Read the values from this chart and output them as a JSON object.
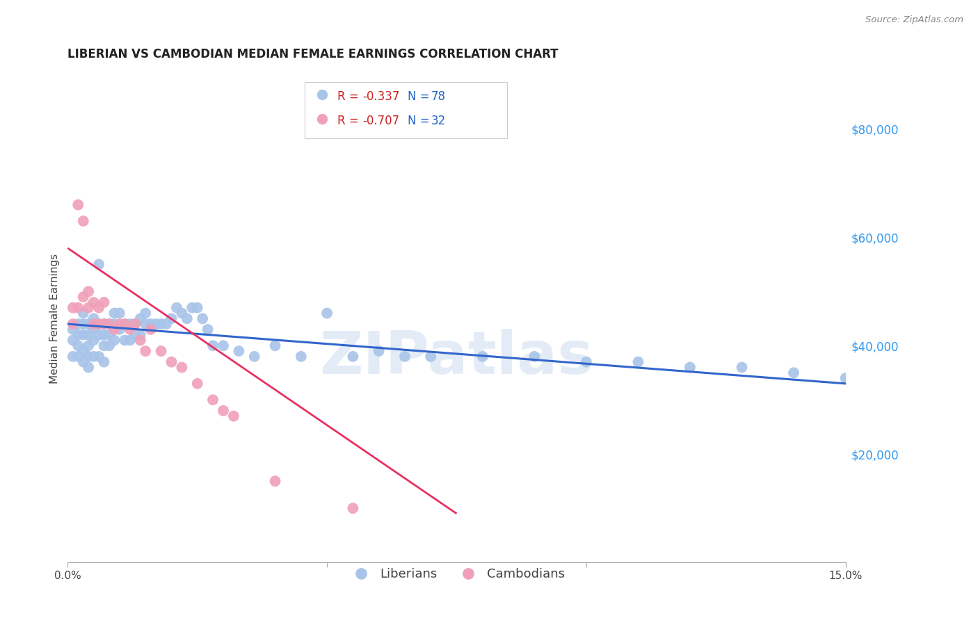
{
  "title": "LIBERIAN VS CAMBODIAN MEDIAN FEMALE EARNINGS CORRELATION CHART",
  "source": "Source: ZipAtlas.com",
  "ylabel": "Median Female Earnings",
  "xlim": [
    0.0,
    0.15
  ],
  "ylim": [
    0,
    90000
  ],
  "background_color": "#ffffff",
  "grid_color": "#c8c8c8",
  "watermark_text": "ZIPatlas",
  "liberian_color": "#a8c4e8",
  "cambodian_color": "#f0a0b8",
  "liberian_line_color": "#3366cc",
  "cambodian_line_color": "#e83060",
  "liberian_line_x": [
    0.0,
    0.15
  ],
  "liberian_line_y": [
    44000,
    33000
  ],
  "cambodian_line_x": [
    0.0,
    0.075
  ],
  "cambodian_line_y": [
    58000,
    9000
  ],
  "legend_r1": "R = -0.337",
  "legend_n1": "N = 78",
  "legend_r2": "R = -0.707",
  "legend_n2": "N = 32",
  "legend_r_color": "#cc2222",
  "legend_n_color": "#2266cc",
  "liberian_x": [
    0.001,
    0.001,
    0.001,
    0.002,
    0.002,
    0.002,
    0.002,
    0.003,
    0.003,
    0.003,
    0.003,
    0.003,
    0.004,
    0.004,
    0.004,
    0.004,
    0.004,
    0.005,
    0.005,
    0.005,
    0.005,
    0.006,
    0.006,
    0.006,
    0.006,
    0.007,
    0.007,
    0.007,
    0.007,
    0.008,
    0.008,
    0.008,
    0.009,
    0.009,
    0.009,
    0.01,
    0.01,
    0.011,
    0.011,
    0.012,
    0.012,
    0.013,
    0.013,
    0.014,
    0.014,
    0.015,
    0.015,
    0.016,
    0.017,
    0.018,
    0.019,
    0.02,
    0.021,
    0.022,
    0.023,
    0.024,
    0.025,
    0.026,
    0.027,
    0.028,
    0.03,
    0.033,
    0.036,
    0.04,
    0.045,
    0.05,
    0.055,
    0.06,
    0.065,
    0.07,
    0.08,
    0.09,
    0.1,
    0.11,
    0.12,
    0.13,
    0.14,
    0.15
  ],
  "liberian_y": [
    43000,
    41000,
    38000,
    44000,
    42000,
    40000,
    38000,
    46000,
    44000,
    42000,
    39000,
    37000,
    44000,
    42000,
    40000,
    38000,
    36000,
    45000,
    43000,
    41000,
    38000,
    55000,
    44000,
    42000,
    38000,
    44000,
    42000,
    40000,
    37000,
    44000,
    42000,
    40000,
    46000,
    44000,
    41000,
    46000,
    43000,
    44000,
    41000,
    44000,
    41000,
    44000,
    42000,
    45000,
    42000,
    46000,
    44000,
    44000,
    44000,
    44000,
    44000,
    45000,
    47000,
    46000,
    45000,
    47000,
    47000,
    45000,
    43000,
    40000,
    40000,
    39000,
    38000,
    40000,
    38000,
    46000,
    38000,
    39000,
    38000,
    38000,
    38000,
    38000,
    37000,
    37000,
    36000,
    36000,
    35000,
    34000
  ],
  "cambodian_x": [
    0.001,
    0.001,
    0.002,
    0.002,
    0.003,
    0.003,
    0.004,
    0.004,
    0.005,
    0.005,
    0.006,
    0.006,
    0.007,
    0.007,
    0.008,
    0.009,
    0.01,
    0.011,
    0.012,
    0.013,
    0.014,
    0.015,
    0.016,
    0.018,
    0.02,
    0.022,
    0.025,
    0.028,
    0.03,
    0.032,
    0.04,
    0.055
  ],
  "cambodian_y": [
    47000,
    44000,
    66000,
    47000,
    63000,
    49000,
    50000,
    47000,
    48000,
    44000,
    47000,
    44000,
    48000,
    44000,
    44000,
    43000,
    44000,
    44000,
    43000,
    44000,
    41000,
    39000,
    43000,
    39000,
    37000,
    36000,
    33000,
    30000,
    28000,
    27000,
    15000,
    10000
  ]
}
